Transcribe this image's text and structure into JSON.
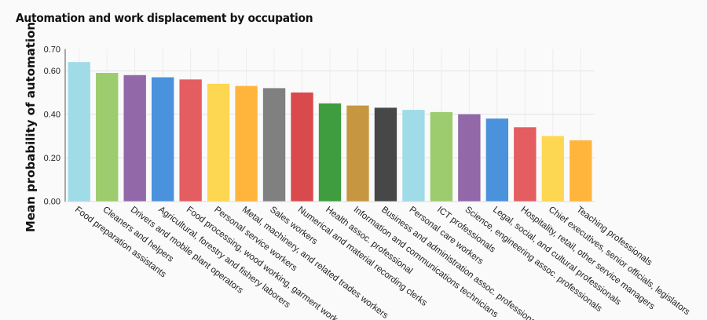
{
  "chart_data": {
    "type": "bar",
    "title": "Automation and work displacement by occupation",
    "xlabel": "",
    "ylabel": "Mean probability of automation",
    "ylim": [
      0,
      0.7
    ],
    "yticks": [
      "0.00",
      "0.20",
      "0.40",
      "0.60",
      "0.70"
    ],
    "ytick_values": [
      0,
      0.2,
      0.4,
      0.6,
      0.7
    ],
    "grid": true,
    "categories": [
      "Food preparation assistants",
      "Cleaners and helpers",
      "Drivers and mobile plant operators",
      "Agricultural, forestry and fishery laborers",
      "Food processing, wood working, garment workers",
      "Personal service workers",
      "Metal, machinery, and related trades workers",
      "Sales workers",
      "Numerical and material recording clerks",
      "Health assoc. professional",
      "Information and communications technicians",
      "Business and administration assoc. professionals",
      "Personal care workers",
      "ICT professionals",
      "Science, engineering assoc. professionals",
      "Legal, social, and cultural professionals",
      "Hospitality, retail, other service managers",
      "Chief executives, senior officials, legislators",
      "Teaching professionals"
    ],
    "values": [
      0.64,
      0.59,
      0.58,
      0.57,
      0.56,
      0.54,
      0.53,
      0.52,
      0.5,
      0.45,
      0.44,
      0.43,
      0.42,
      0.41,
      0.4,
      0.38,
      0.34,
      0.3,
      0.28
    ],
    "colors": [
      "#a0dbe8",
      "#9dcc6e",
      "#9268a8",
      "#4a92dc",
      "#e35d61",
      "#fed752",
      "#ffb43c",
      "#808080",
      "#d94a4d",
      "#3f9c3f",
      "#c79640",
      "#474747",
      "#a0dbe8",
      "#9dcc6e",
      "#9268a8",
      "#4a92dc",
      "#e35d61",
      "#fed752",
      "#ffb43c"
    ]
  }
}
